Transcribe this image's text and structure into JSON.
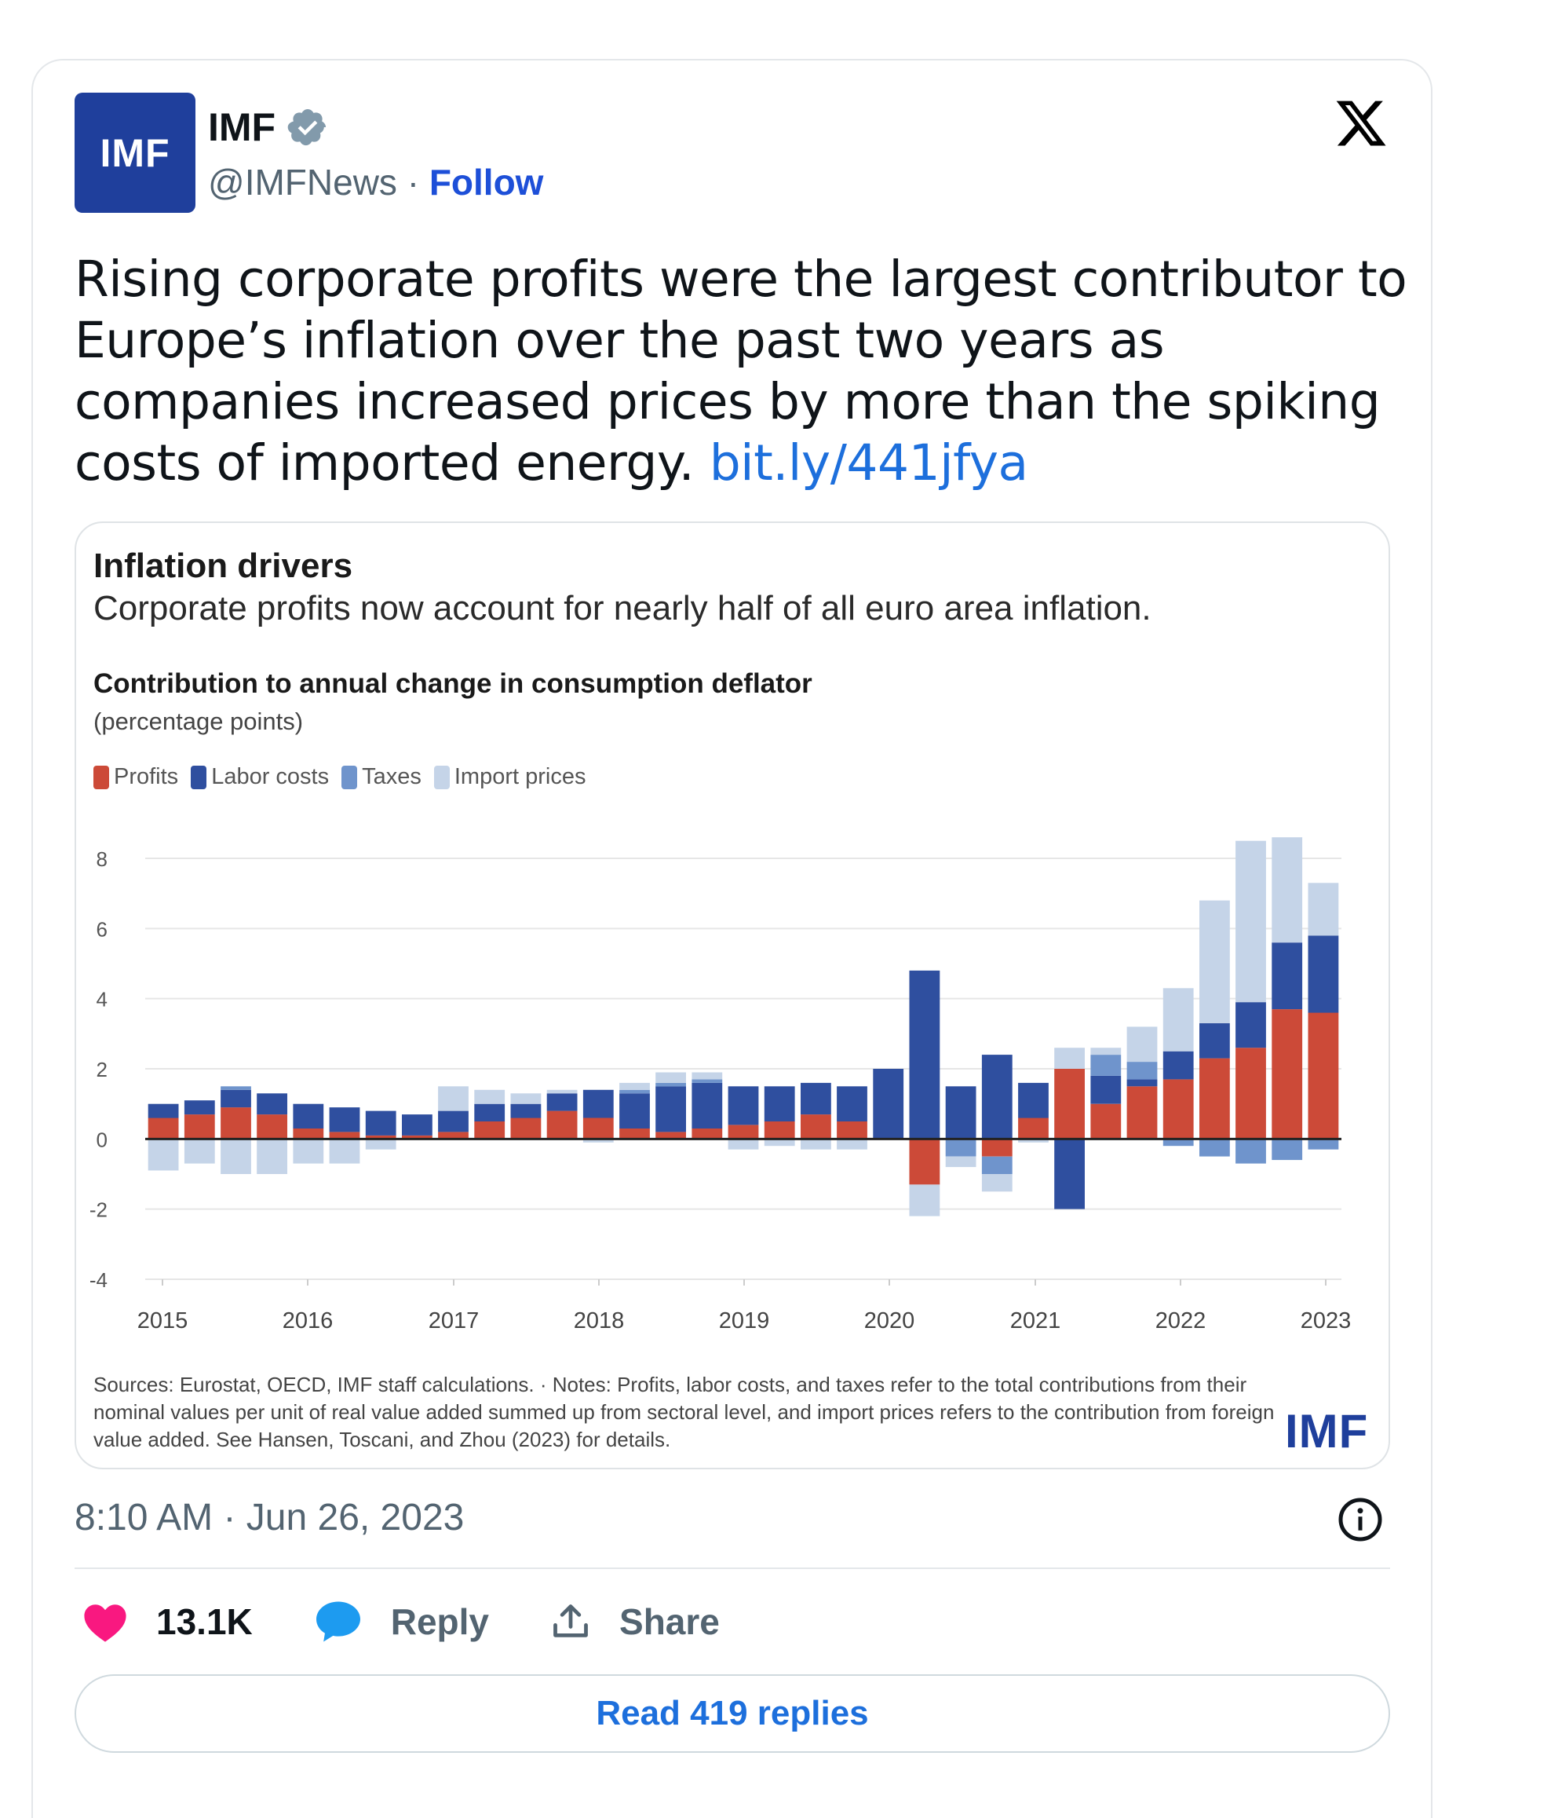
{
  "account": {
    "avatar_text": "IMF",
    "name": "IMF",
    "handle": "@IMFNews",
    "separator": " · ",
    "follow_label": "Follow"
  },
  "tweet": {
    "text": "Rising corporate profits were the largest contributor to Europe’s inflation over the past two years as companies increased prices by more than the spiking costs of imported energy. ",
    "link": "bit.ly/441jfya",
    "timestamp": "8:10 AM · Jun 26, 2023"
  },
  "chart_card": {
    "title": "Inflation drivers",
    "subtitle": "Corporate profits now account for nearly half of all euro area inflation.",
    "chart_heading": "Contribution to annual change in consumption deflator",
    "unit": "(percentage points)",
    "notes": "Sources: Eurostat, OECD, IMF staff calculations. · Notes: Profits, labor costs, and taxes refer to the total contributions from their nominal values per unit of real value added summed up from sectoral level, and import prices refers to the contribution from foreign value added. See Hansen, Toscani, and Zhou (2023) for details.",
    "logo_text": "IMF"
  },
  "actions": {
    "likes": "13.1K",
    "reply_label": "Reply",
    "share_label": "Share",
    "read_replies": "Read 419 replies"
  },
  "icons": {
    "x_logo": "x-logo-icon",
    "verified": "verified-badge-icon",
    "info": "info-icon",
    "heart": "heart-icon",
    "reply": "reply-bubble-icon",
    "share": "share-icon"
  },
  "colors": {
    "profits": "#cc4a38",
    "labor_costs": "#2f4f9f",
    "taxes": "#6f94cc",
    "import_prices": "#c5d4e8",
    "link": "#1d6fdc",
    "heart": "#f91880",
    "reply": "#1d9bf0"
  },
  "chart_data": {
    "type": "bar",
    "stacked": true,
    "title": "Contribution to annual change in consumption deflator",
    "ylabel": "(percentage points)",
    "ylim": [
      -4,
      8
    ],
    "yticks": [
      8,
      6,
      4,
      2,
      0,
      -2,
      -4
    ],
    "xticks": [
      "2015",
      "2016",
      "2017",
      "2018",
      "2019",
      "2020",
      "2021",
      "2022",
      "2023"
    ],
    "legend_position": "top-left",
    "series": [
      {
        "name": "Profits",
        "color": "#cc4a38",
        "values": [
          0.6,
          0.7,
          0.9,
          0.7,
          0.3,
          0.2,
          0.1,
          0.1,
          0.2,
          0.5,
          0.6,
          0.8,
          0.6,
          0.3,
          0.2,
          0.3,
          0.4,
          0.5,
          0.7,
          0.5,
          0,
          -1.3,
          0,
          -0.5,
          0.6,
          2.0,
          1.0,
          1.5,
          1.7,
          2.3,
          2.6,
          3.7,
          3.6
        ]
      },
      {
        "name": "Labor costs",
        "color": "#2f4f9f",
        "values": [
          0.4,
          0.4,
          0.5,
          0.6,
          0.7,
          0.7,
          0.7,
          0.6,
          0.6,
          0.5,
          0.4,
          0.5,
          0.8,
          1.0,
          1.3,
          1.3,
          1.1,
          1.0,
          0.9,
          1.0,
          2.0,
          4.8,
          1.5,
          2.4,
          1.0,
          -2.0,
          0.8,
          0.2,
          0.8,
          1.0,
          1.3,
          1.9,
          2.2
        ]
      },
      {
        "name": "Taxes",
        "color": "#6f94cc",
        "values": [
          0,
          0,
          0.1,
          0,
          0,
          0,
          0,
          0,
          0,
          0,
          0,
          0,
          0,
          0.1,
          0.1,
          0.1,
          0,
          0,
          0,
          0,
          0,
          0,
          -0.5,
          -0.5,
          0,
          0,
          0.6,
          0.5,
          -0.2,
          -0.5,
          -0.7,
          -0.6,
          -0.3
        ]
      },
      {
        "name": "Import prices",
        "color": "#c5d4e8",
        "values": [
          -0.9,
          -0.7,
          -1.0,
          -1.0,
          -0.7,
          -0.7,
          -0.3,
          0,
          0.7,
          0.4,
          0.3,
          0.1,
          -0.1,
          0.2,
          0.3,
          0.2,
          -0.3,
          -0.2,
          -0.3,
          -0.3,
          0,
          -0.9,
          -0.3,
          -0.5,
          -0.1,
          0.6,
          0.2,
          1.0,
          1.8,
          3.5,
          4.6,
          3.0,
          1.5
        ]
      }
    ]
  }
}
